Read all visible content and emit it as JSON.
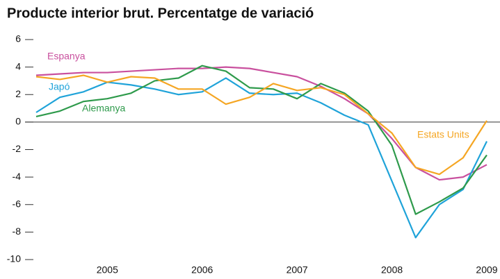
{
  "chart_data": {
    "type": "line",
    "title": "Producte interior brut. Percentatge de variació",
    "x": [
      2004.25,
      2004.5,
      2004.75,
      2005.0,
      2005.25,
      2005.5,
      2005.75,
      2006.0,
      2006.25,
      2006.5,
      2006.75,
      2007.0,
      2007.25,
      2007.5,
      2007.75,
      2008.0,
      2008.25,
      2008.5,
      2008.75,
      2009.0
    ],
    "series": [
      {
        "name": "Espanya",
        "color": "#c9509e",
        "values": [
          3.4,
          3.5,
          3.6,
          3.6,
          3.7,
          3.8,
          3.9,
          3.9,
          4.0,
          3.9,
          3.6,
          3.3,
          2.6,
          1.7,
          0.6,
          -1.2,
          -3.3,
          -4.2,
          -4.0,
          -3.1
        ]
      },
      {
        "name": "Japó",
        "color": "#1fa3d9",
        "values": [
          0.7,
          1.8,
          2.2,
          2.9,
          2.7,
          2.4,
          2.0,
          2.2,
          3.2,
          2.1,
          2.0,
          2.1,
          1.4,
          0.5,
          -0.2,
          -4.3,
          -8.4,
          -6.0,
          -4.9,
          -1.4
        ]
      },
      {
        "name": "Alemanya",
        "color": "#2e9a4b",
        "values": [
          0.4,
          0.8,
          1.5,
          1.7,
          2.1,
          3.0,
          3.2,
          4.1,
          3.7,
          2.5,
          2.4,
          1.7,
          2.8,
          2.1,
          0.8,
          -1.7,
          -6.7,
          -5.8,
          -4.8,
          -2.4
        ]
      },
      {
        "name": "Estats Units",
        "color": "#f5a623",
        "values": [
          3.3,
          3.1,
          3.4,
          2.9,
          3.3,
          3.2,
          2.4,
          2.4,
          1.3,
          1.8,
          2.8,
          2.3,
          2.5,
          2.0,
          0.6,
          -0.8,
          -3.3,
          -3.8,
          -2.6,
          0.1
        ]
      }
    ],
    "xlim": [
      2004.25,
      2009.0
    ],
    "xticks": [
      2005,
      2006,
      2007,
      2008,
      2009
    ],
    "ylim": [
      -10,
      6
    ],
    "yticks": [
      -10,
      -8,
      -6,
      -4,
      -2,
      0,
      2,
      4,
      6
    ],
    "grid": false
  }
}
